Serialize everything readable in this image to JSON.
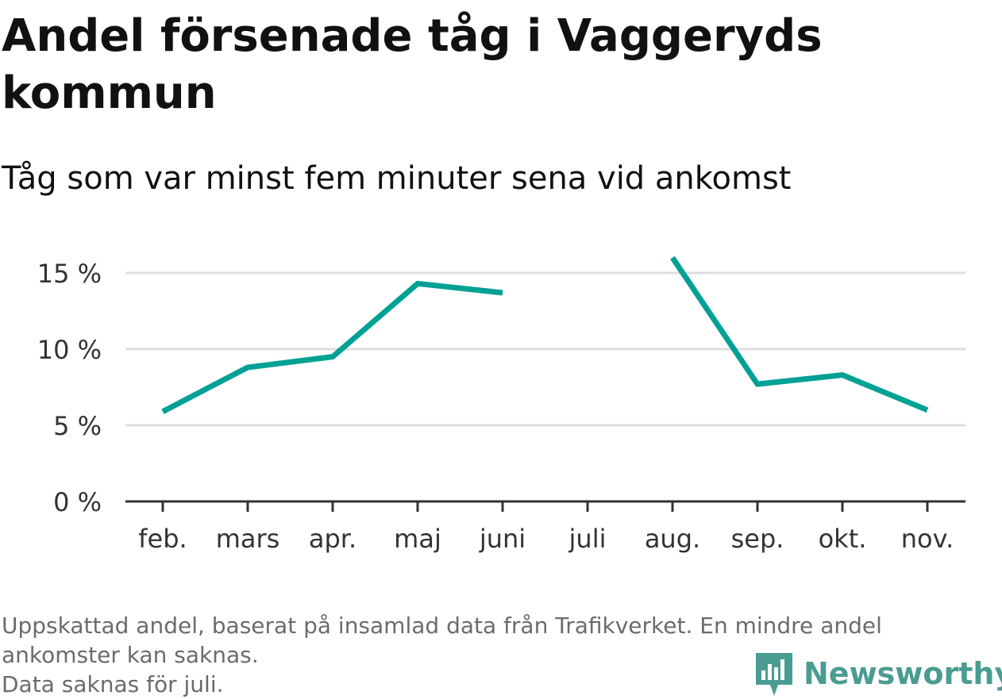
{
  "header": {
    "title": "Andel försenade tåg i Vaggeryds kommun",
    "subtitle": "Tåg som var minst fem minuter sena vid ankomst"
  },
  "chart_data": {
    "type": "line",
    "title": "Andel försenade tåg i Vaggeryds kommun",
    "subtitle": "Tåg som var minst fem minuter sena vid ankomst",
    "categories": [
      "feb.",
      "mars",
      "apr.",
      "maj",
      "juni",
      "juli",
      "aug.",
      "sep.",
      "okt.",
      "nov."
    ],
    "series": [
      {
        "values": [
          5.9,
          8.8,
          9.5,
          14.3,
          13.7,
          null,
          16.0,
          7.7,
          8.3,
          6.0
        ]
      }
    ],
    "y_ticks": [
      0,
      5,
      10,
      15
    ],
    "y_tick_labels": [
      "0 %",
      "5 %",
      "10 %",
      "15 %"
    ],
    "ylim": [
      0,
      16
    ],
    "grid": true,
    "line_color": "#00a195",
    "grid_color": "#dddddd",
    "axis_color": "#333333"
  },
  "footer": {
    "note_line1": "Uppskattad andel, baserat på insamlad data från Trafikverket. En mindre andel",
    "note_line2": "ankomster kan saknas.",
    "note_line3": "Data saknas för juli.",
    "brand": "Newsworthy",
    "brand_color": "#4a9c92",
    "brand_icon": "newsworthy-logo-icon"
  }
}
